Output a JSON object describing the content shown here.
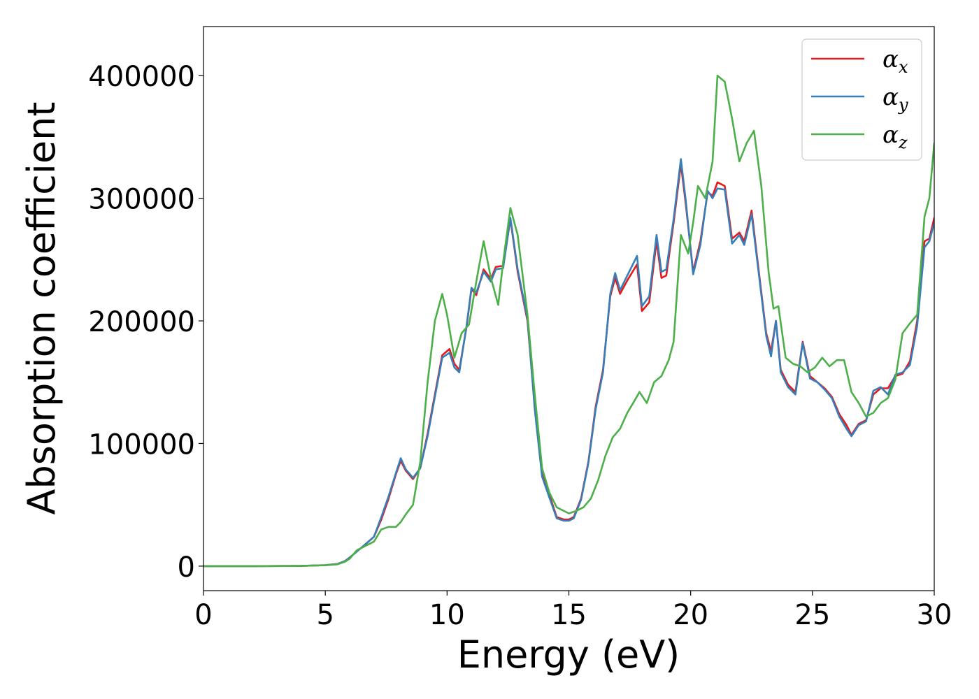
{
  "chart_data": {
    "type": "line",
    "title": "",
    "xlabel": "Energy (eV)",
    "ylabel": "Absorption coefficient",
    "xlim": [
      0,
      30
    ],
    "ylim": [
      -20000,
      440000
    ],
    "xticks": [
      0,
      5,
      10,
      15,
      20,
      25,
      30
    ],
    "xtick_labels": [
      "0",
      "5",
      "10",
      "15",
      "20",
      "25",
      "30"
    ],
    "yticks": [
      0,
      100000,
      200000,
      300000,
      400000
    ],
    "ytick_labels": [
      "0",
      "100000",
      "200000",
      "300000",
      "400000"
    ],
    "grid": false,
    "legend_position": "top-right",
    "series": [
      {
        "name": "αx",
        "base": "α",
        "sub": "x",
        "color": "#e41a1c",
        "x": [
          0,
          2,
          4,
          5,
          5.5,
          5.8,
          6,
          6.3,
          6.6,
          7,
          7.3,
          7.6,
          7.9,
          8.1,
          8.3,
          8.6,
          8.9,
          9.2,
          9.5,
          9.8,
          10.1,
          10.3,
          10.5,
          10.8,
          11.0,
          11.2,
          11.5,
          11.8,
          12.0,
          12.3,
          12.6,
          12.9,
          13.3,
          13.6,
          13.9,
          14.2,
          14.5,
          14.8,
          15.0,
          15.2,
          15.5,
          15.8,
          16.1,
          16.4,
          16.7,
          16.9,
          17.1,
          17.4,
          17.8,
          18.0,
          18.3,
          18.6,
          18.8,
          19.0,
          19.3,
          19.6,
          19.8,
          20.1,
          20.4,
          20.7,
          20.9,
          21.1,
          21.4,
          21.7,
          22.0,
          22.2,
          22.5,
          22.8,
          23.1,
          23.3,
          23.5,
          23.7,
          24.0,
          24.3,
          24.6,
          24.9,
          25.2,
          25.5,
          25.8,
          26.1,
          26.4,
          26.6,
          26.9,
          27.2,
          27.5,
          27.8,
          28.1,
          28.4,
          28.7,
          29.0,
          29.3,
          29.6,
          29.8,
          30.0
        ],
        "y": [
          0,
          0,
          200,
          800,
          1800,
          4000,
          7000,
          12000,
          17000,
          24000,
          38000,
          55000,
          75000,
          86000,
          78000,
          71000,
          80000,
          108000,
          140000,
          172000,
          177000,
          165000,
          160000,
          195000,
          226000,
          221000,
          242000,
          234000,
          244000,
          245000,
          283000,
          240000,
          200000,
          130000,
          75000,
          58000,
          40000,
          38000,
          38000,
          40000,
          55000,
          85000,
          130000,
          160000,
          220000,
          235000,
          222000,
          233000,
          246000,
          208000,
          215000,
          265000,
          235000,
          237000,
          280000,
          328000,
          295000,
          240000,
          265000,
          305000,
          302000,
          313000,
          310000,
          267000,
          272000,
          265000,
          290000,
          240000,
          190000,
          175000,
          200000,
          160000,
          148000,
          142000,
          183000,
          155000,
          150000,
          145000,
          138000,
          124000,
          115000,
          107000,
          116000,
          119000,
          140000,
          145000,
          145000,
          155000,
          157000,
          167000,
          200000,
          265000,
          267000,
          284000
        ]
      },
      {
        "name": "αy",
        "base": "α",
        "sub": "y",
        "color": "#377eb8",
        "x": [
          0,
          2,
          4,
          5,
          5.5,
          5.8,
          6,
          6.3,
          6.6,
          7,
          7.3,
          7.6,
          7.9,
          8.1,
          8.3,
          8.6,
          8.9,
          9.2,
          9.5,
          9.8,
          10.1,
          10.3,
          10.5,
          10.8,
          11.0,
          11.2,
          11.5,
          11.8,
          12.0,
          12.3,
          12.6,
          12.9,
          13.3,
          13.6,
          13.9,
          14.2,
          14.5,
          14.8,
          15.0,
          15.2,
          15.5,
          15.8,
          16.1,
          16.4,
          16.7,
          16.9,
          17.1,
          17.4,
          17.8,
          18.0,
          18.3,
          18.6,
          18.8,
          19.0,
          19.3,
          19.6,
          19.8,
          20.1,
          20.4,
          20.7,
          20.9,
          21.1,
          21.4,
          21.7,
          22.0,
          22.2,
          22.5,
          22.8,
          23.1,
          23.3,
          23.5,
          23.7,
          24.0,
          24.3,
          24.6,
          24.9,
          25.2,
          25.5,
          25.8,
          26.1,
          26.4,
          26.6,
          26.9,
          27.2,
          27.5,
          27.8,
          28.1,
          28.4,
          28.7,
          29.0,
          29.3,
          29.6,
          29.8,
          30.0
        ],
        "y": [
          0,
          0,
          200,
          800,
          1800,
          4000,
          7000,
          12000,
          17000,
          24000,
          40000,
          57000,
          76000,
          88000,
          79000,
          72000,
          80000,
          106000,
          138000,
          170000,
          174000,
          162000,
          158000,
          196000,
          227000,
          223000,
          240000,
          232000,
          242000,
          243000,
          284000,
          242000,
          202000,
          128000,
          73000,
          56000,
          39000,
          37000,
          37000,
          39000,
          54000,
          84000,
          128000,
          158000,
          222000,
          239000,
          225000,
          237000,
          253000,
          212000,
          220000,
          270000,
          240000,
          242000,
          283000,
          332000,
          298000,
          238000,
          262000,
          306000,
          300000,
          308000,
          307000,
          263000,
          270000,
          262000,
          287000,
          238000,
          188000,
          171000,
          200000,
          158000,
          146000,
          140000,
          182000,
          153000,
          150000,
          144000,
          137000,
          122000,
          112000,
          106000,
          115000,
          118000,
          143000,
          146000,
          140000,
          156000,
          158000,
          164000,
          196000,
          260000,
          265000,
          280000
        ]
      },
      {
        "name": "αz",
        "base": "α",
        "sub": "z",
        "color": "#4daf4a",
        "x": [
          0,
          2,
          4,
          5,
          5.5,
          5.8,
          6,
          6.3,
          6.6,
          7,
          7.3,
          7.6,
          7.9,
          8.1,
          8.3,
          8.6,
          8.9,
          9.2,
          9.5,
          9.8,
          10.0,
          10.3,
          10.6,
          10.9,
          11.2,
          11.5,
          11.8,
          12.1,
          12.3,
          12.6,
          12.9,
          13.3,
          13.6,
          13.9,
          14.2,
          14.5,
          14.8,
          15.0,
          15.3,
          15.6,
          15.9,
          16.2,
          16.5,
          16.8,
          17.1,
          17.4,
          17.7,
          17.9,
          18.2,
          18.5,
          18.8,
          19.1,
          19.3,
          19.6,
          19.9,
          20.1,
          20.3,
          20.6,
          20.9,
          21.1,
          21.4,
          21.7,
          22.0,
          22.3,
          22.6,
          22.9,
          23.2,
          23.4,
          23.6,
          23.9,
          24.2,
          24.5,
          24.8,
          25.1,
          25.4,
          25.7,
          26.0,
          26.3,
          26.6,
          26.9,
          27.2,
          27.5,
          27.8,
          28.1,
          28.4,
          28.7,
          29.0,
          29.3,
          29.6,
          29.8,
          30.0
        ],
        "y": [
          0,
          0,
          200,
          700,
          1500,
          3500,
          6000,
          13000,
          16000,
          20000,
          30000,
          32000,
          32000,
          36000,
          42000,
          50000,
          85000,
          150000,
          200000,
          222000,
          205000,
          170000,
          190000,
          197000,
          232000,
          265000,
          235000,
          213000,
          248000,
          292000,
          270000,
          205000,
          140000,
          80000,
          60000,
          48000,
          45000,
          43000,
          45000,
          48000,
          55000,
          70000,
          90000,
          105000,
          112000,
          125000,
          135000,
          142000,
          133000,
          150000,
          155000,
          168000,
          183000,
          270000,
          255000,
          280000,
          310000,
          300000,
          330000,
          400000,
          395000,
          365000,
          330000,
          345000,
          355000,
          310000,
          240000,
          210000,
          212000,
          170000,
          165000,
          163000,
          158000,
          162000,
          170000,
          163000,
          168000,
          168000,
          142000,
          133000,
          122000,
          125000,
          133000,
          137000,
          152000,
          190000,
          198000,
          205000,
          285000,
          300000,
          345000
        ]
      }
    ]
  }
}
